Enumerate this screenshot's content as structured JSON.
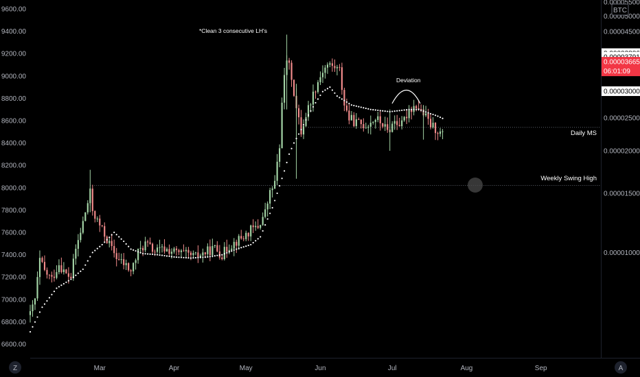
{
  "chart_data": {
    "type": "candlestick",
    "left_axis": {
      "ticks": [
        "9600.00",
        "9400.00",
        "9200.00",
        "9000.00",
        "8800.00",
        "8600.00",
        "8400.00",
        "8200.00",
        "8000.00",
        "7800.00",
        "7600.00",
        "7400.00",
        "7200.00",
        "7000.00",
        "6800.00",
        "6600.00"
      ],
      "range": [
        6500,
        9650
      ]
    },
    "right_axis": {
      "unit_badge": "BTC",
      "ticks": [
        "0.00005500",
        "0.00005000",
        "0.00004500",
        "0.00002500",
        "0.00002000",
        "0.00001500",
        "0.00001000"
      ],
      "tick_values": [
        5.5e-05,
        5e-05,
        4.5e-05,
        2.5e-05,
        2e-05,
        1.5e-05,
        1e-05
      ],
      "range": [
        5.5e-06,
        5.5e-05
      ],
      "badges": [
        {
          "text": "0.00003886",
          "value": 3.886e-05,
          "bg": "#ffffff",
          "fg": "#000000"
        },
        {
          "text": "0.00003791",
          "value": 3.791e-05,
          "bg": "#ffffff",
          "fg": "#000000"
        },
        {
          "text": "0.00003665",
          "sub": "06:01:09",
          "value": 3.665e-05,
          "bg": "#f23645",
          "fg": "#ffffff"
        },
        {
          "text": "0.00003000",
          "value": 3e-05,
          "bg": "#ffffff",
          "fg": "#000000"
        }
      ]
    },
    "x_axis": {
      "labels": [
        "Mar",
        "Apr",
        "May",
        "Jun",
        "Jul",
        "Aug",
        "Sep"
      ],
      "start_date": "2020-02-01",
      "label_dates": [
        "2020-03-01",
        "2020-04-01",
        "2020-05-01",
        "2020-06-01",
        "2020-07-01",
        "2020-08-01",
        "2020-09-01"
      ],
      "end_date": "2020-09-26"
    },
    "annotations": {
      "top_note": "*Clean 3 consecutive LH's",
      "deviation": "Deviation",
      "daily_ms": "Daily MS",
      "weekly_high": "Weekly Swing High"
    },
    "levels": [
      {
        "name": "daily-ms",
        "value": 8540
      },
      {
        "name": "weekly-swing-high",
        "value": 8020
      }
    ],
    "colors": {
      "up": "#a5d6a7",
      "down": "#f28b8b",
      "sar": "#ffffff",
      "bg": "#000000",
      "axis_text": "#b2b5be"
    },
    "series": [
      {
        "name": "close",
        "unit": "USD",
        "anchors": [
          [
            "2020-02-01",
            6860
          ],
          [
            "2020-02-03",
            7000
          ],
          [
            "2020-02-05",
            7350
          ],
          [
            "2020-02-07",
            7250
          ],
          [
            "2020-02-10",
            7180
          ],
          [
            "2020-02-13",
            7320
          ],
          [
            "2020-02-16",
            7220
          ],
          [
            "2020-02-18",
            7200
          ],
          [
            "2020-02-20",
            7450
          ],
          [
            "2020-02-22",
            7600
          ],
          [
            "2020-02-24",
            7780
          ],
          [
            "2020-02-26",
            7950
          ],
          [
            "2020-02-27",
            7800
          ],
          [
            "2020-02-29",
            7700
          ],
          [
            "2020-03-03",
            7580
          ],
          [
            "2020-03-06",
            7450
          ],
          [
            "2020-03-09",
            7350
          ],
          [
            "2020-03-12",
            7300
          ],
          [
            "2020-03-14",
            7250
          ],
          [
            "2020-03-17",
            7420
          ],
          [
            "2020-03-20",
            7500
          ],
          [
            "2020-03-24",
            7430
          ],
          [
            "2020-03-28",
            7450
          ],
          [
            "2020-04-02",
            7420
          ],
          [
            "2020-04-06",
            7400
          ],
          [
            "2020-04-10",
            7380
          ],
          [
            "2020-04-14",
            7420
          ],
          [
            "2020-04-18",
            7460
          ],
          [
            "2020-04-21",
            7400
          ],
          [
            "2020-04-24",
            7480
          ],
          [
            "2020-04-27",
            7520
          ],
          [
            "2020-04-30",
            7560
          ],
          [
            "2020-05-03",
            7620
          ],
          [
            "2020-05-06",
            7650
          ],
          [
            "2020-05-09",
            7780
          ],
          [
            "2020-05-11",
            7950
          ],
          [
            "2020-05-13",
            8050
          ],
          [
            "2020-05-15",
            8350
          ],
          [
            "2020-05-16",
            8800
          ],
          [
            "2020-05-18",
            9150
          ],
          [
            "2020-05-20",
            9000
          ],
          [
            "2020-05-22",
            8700
          ],
          [
            "2020-05-24",
            8500
          ],
          [
            "2020-05-26",
            8650
          ],
          [
            "2020-05-28",
            8780
          ],
          [
            "2020-05-30",
            8900
          ],
          [
            "2020-06-02",
            9050
          ],
          [
            "2020-06-04",
            9100
          ],
          [
            "2020-06-07",
            9080
          ],
          [
            "2020-06-09",
            9050
          ],
          [
            "2020-06-11",
            8750
          ],
          [
            "2020-06-13",
            8620
          ],
          [
            "2020-06-16",
            8580
          ],
          [
            "2020-06-20",
            8560
          ],
          [
            "2020-06-24",
            8620
          ],
          [
            "2020-06-27",
            8570
          ],
          [
            "2020-06-29",
            8500
          ],
          [
            "2020-07-02",
            8600
          ],
          [
            "2020-07-05",
            8560
          ],
          [
            "2020-07-08",
            8700
          ],
          [
            "2020-07-11",
            8740
          ],
          [
            "2020-07-14",
            8660
          ],
          [
            "2020-07-17",
            8560
          ],
          [
            "2020-07-20",
            8510
          ],
          [
            "2020-07-22",
            8470
          ]
        ]
      },
      {
        "name": "parabolic-sar",
        "unit": "USD",
        "anchors": [
          [
            "2020-02-01",
            6710
          ],
          [
            "2020-02-06",
            6930
          ],
          [
            "2020-02-12",
            7100
          ],
          [
            "2020-02-18",
            7180
          ],
          [
            "2020-02-23",
            7270
          ],
          [
            "2020-02-27",
            7420
          ],
          [
            "2020-03-02",
            7490
          ],
          [
            "2020-03-07",
            7600
          ],
          [
            "2020-03-11",
            7520
          ],
          [
            "2020-03-14",
            7450
          ],
          [
            "2020-03-19",
            7410
          ],
          [
            "2020-03-25",
            7400
          ],
          [
            "2020-04-01",
            7380
          ],
          [
            "2020-04-08",
            7370
          ],
          [
            "2020-04-15",
            7380
          ],
          [
            "2020-04-21",
            7400
          ],
          [
            "2020-04-27",
            7450
          ],
          [
            "2020-05-03",
            7490
          ],
          [
            "2020-05-07",
            7560
          ],
          [
            "2020-05-10",
            7720
          ],
          [
            "2020-05-12",
            7820
          ],
          [
            "2020-05-14",
            7950
          ],
          [
            "2020-05-17",
            8150
          ],
          [
            "2020-05-19",
            8300
          ],
          [
            "2020-05-21",
            8400
          ],
          [
            "2020-05-24",
            8520
          ],
          [
            "2020-05-27",
            8650
          ],
          [
            "2020-05-30",
            8760
          ],
          [
            "2020-06-02",
            8860
          ],
          [
            "2020-06-05",
            8900
          ],
          [
            "2020-06-08",
            8820
          ],
          [
            "2020-06-11",
            8780
          ],
          [
            "2020-06-14",
            8740
          ],
          [
            "2020-06-18",
            8720
          ],
          [
            "2020-06-22",
            8700
          ],
          [
            "2020-06-26",
            8690
          ],
          [
            "2020-06-30",
            8680
          ],
          [
            "2020-07-04",
            8690
          ],
          [
            "2020-07-08",
            8700
          ],
          [
            "2020-07-12",
            8700
          ],
          [
            "2020-07-16",
            8670
          ],
          [
            "2020-07-20",
            8640
          ],
          [
            "2020-07-22",
            8620
          ]
        ]
      }
    ]
  }
}
